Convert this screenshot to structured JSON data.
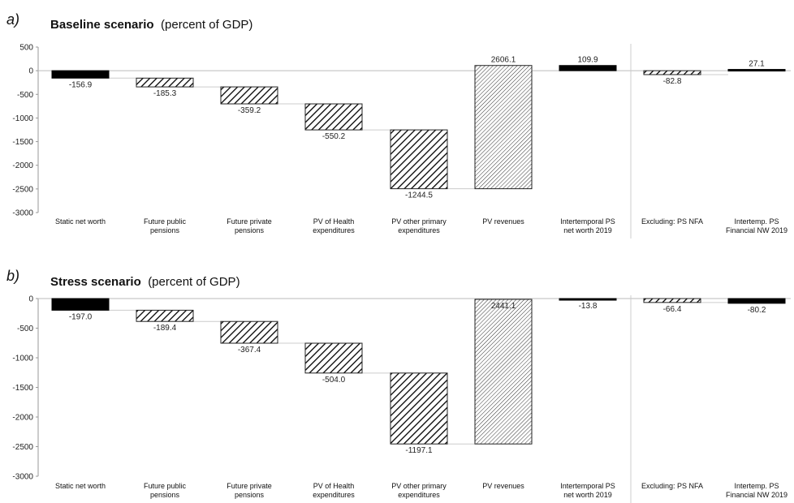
{
  "chart_data": [
    {
      "type": "bar",
      "panel": "a)",
      "title_bold": "Baseline scenario",
      "title_rest": "(percent of GDP)",
      "ylim": [
        -3000,
        500
      ],
      "yticks": [
        500,
        0,
        -500,
        -1000,
        -1500,
        -2000,
        -2500,
        -3000
      ],
      "bars": [
        {
          "category": [
            "Static net worth"
          ],
          "start": 0,
          "end": -156.9,
          "label": "-156.9",
          "style": "solid"
        },
        {
          "category": [
            "Future public",
            "pensions"
          ],
          "start": -156.9,
          "end": -342.2,
          "label": "-185.3",
          "style": "hatch"
        },
        {
          "category": [
            "Future private",
            "pensions"
          ],
          "start": -342.2,
          "end": -701.4,
          "label": "-359.2",
          "style": "hatch"
        },
        {
          "category": [
            "PV of Health",
            "expenditures"
          ],
          "start": -701.4,
          "end": -1251.6,
          "label": "-550.2",
          "style": "hatch"
        },
        {
          "category": [
            "PV other primary",
            "expenditures"
          ],
          "start": -1251.6,
          "end": -2496.1,
          "label": "-1244.5",
          "style": "hatch"
        },
        {
          "category": [
            "PV revenues"
          ],
          "start": -2496.1,
          "end": 110.0,
          "label": "2606.1",
          "style": "dense"
        },
        {
          "category": [
            "Intertemporal PS",
            "net worth 2019"
          ],
          "start": 0,
          "end": 109.9,
          "label": "109.9",
          "style": "solid"
        },
        {
          "category": [
            "Excluding: PS NFA"
          ],
          "start": 0,
          "end": -82.8,
          "label": "-82.8",
          "style": "hatch"
        },
        {
          "category": [
            "Intertemp. PS",
            "Financial NW 2019"
          ],
          "start": 0,
          "end": 27.1,
          "label": "27.1",
          "style": "solid"
        }
      ]
    },
    {
      "type": "bar",
      "panel": "b)",
      "title_bold": "Stress scenario",
      "title_rest": "(percent of GDP)",
      "ylim": [
        -3000,
        0
      ],
      "yticks": [
        0,
        -500,
        -1000,
        -1500,
        -2000,
        -2500,
        -3000
      ],
      "bars": [
        {
          "category": [
            "Static net worth"
          ],
          "start": 0,
          "end": -197.0,
          "label": "-197.0",
          "style": "solid"
        },
        {
          "category": [
            "Future public",
            "pensions"
          ],
          "start": -197.0,
          "end": -386.4,
          "label": "-189.4",
          "style": "hatch"
        },
        {
          "category": [
            "Future private",
            "pensions"
          ],
          "start": -386.4,
          "end": -753.8,
          "label": "-367.4",
          "style": "hatch"
        },
        {
          "category": [
            "PV of Health",
            "expenditures"
          ],
          "start": -753.8,
          "end": -1257.8,
          "label": "-504.0",
          "style": "hatch"
        },
        {
          "category": [
            "PV other primary",
            "expenditures"
          ],
          "start": -1257.8,
          "end": -2454.9,
          "label": "-1197.1",
          "style": "hatch"
        },
        {
          "category": [
            "PV revenues"
          ],
          "start": -2454.9,
          "end": -13.8,
          "label": "2441.1",
          "style": "dense"
        },
        {
          "category": [
            "Intertemporal PS",
            "net worth 2019"
          ],
          "start": 0,
          "end": -13.8,
          "label": "-13.8",
          "style": "solid"
        },
        {
          "category": [
            "Excluding: PS NFA"
          ],
          "start": 0,
          "end": -66.4,
          "label": "-66.4",
          "style": "hatch"
        },
        {
          "category": [
            "Intertemp. PS",
            "Financial NW 2019"
          ],
          "start": 0,
          "end": -80.2,
          "label": "-80.2",
          "style": "solid"
        }
      ]
    }
  ]
}
